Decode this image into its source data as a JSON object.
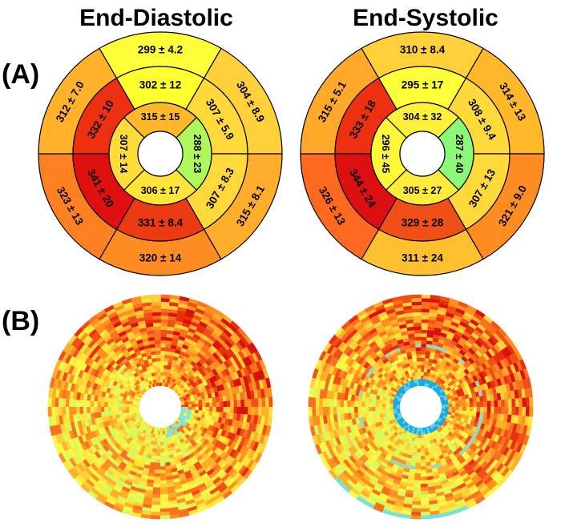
{
  "titles": {
    "end_diastolic": "End-Diastolic",
    "end_systolic": "End-Systolic"
  },
  "panel_labels": {
    "a": "(A)",
    "b": "(B)"
  },
  "color_scale": {
    "low": "#7fff3a",
    "mid": "#ffff30",
    "high": "#d01010"
  },
  "bullseyes": [
    {
      "key": "end_diastolic",
      "segments": [
        {
          "ring": 0,
          "seg": 0,
          "label": "299  ±  4.2",
          "color": "#ffff3a"
        },
        {
          "ring": 0,
          "seg": 1,
          "label": "304  ±  8.9",
          "color": "#ffd03a"
        },
        {
          "ring": 0,
          "seg": 2,
          "label": "315  ±  8.1",
          "color": "#ffad2a"
        },
        {
          "ring": 0,
          "seg": 3,
          "label": "320  ±  14",
          "color": "#ff8c20"
        },
        {
          "ring": 0,
          "seg": 4,
          "label": "323  ±  13",
          "color": "#ff8020"
        },
        {
          "ring": 0,
          "seg": 5,
          "label": "312  ±  7.0",
          "color": "#ffb22a"
        },
        {
          "ring": 1,
          "seg": 0,
          "label": "302 ± 12",
          "color": "#ffff30"
        },
        {
          "ring": 1,
          "seg": 1,
          "label": "307 ± 5.9",
          "color": "#ffd83a"
        },
        {
          "ring": 1,
          "seg": 2,
          "label": "307 ± 8.3",
          "color": "#ffd83a"
        },
        {
          "ring": 1,
          "seg": 3,
          "label": "331 ± 8.4",
          "color": "#ec3a14"
        },
        {
          "ring": 1,
          "seg": 4,
          "label": "341 ± 20",
          "color": "#e01010"
        },
        {
          "ring": 1,
          "seg": 5,
          "label": "332 ± 10",
          "color": "#ec3010"
        },
        {
          "ring": 2,
          "seg": 0,
          "label": "315 ± 15",
          "color": "#ffb82a"
        },
        {
          "ring": 2,
          "seg": 1,
          "label": "288 ± 23",
          "color": "#aef85a"
        },
        {
          "ring": 2,
          "seg": 2,
          "label": "306 ± 17",
          "color": "#ffe43a"
        },
        {
          "ring": 2,
          "seg": 3,
          "label": "307 ± 14",
          "color": "#ffdc3a"
        }
      ]
    },
    {
      "key": "end_systolic",
      "segments": [
        {
          "ring": 0,
          "seg": 0,
          "label": "310  ±  8.4",
          "color": "#ffd03a"
        },
        {
          "ring": 0,
          "seg": 1,
          "label": "314  ±  13",
          "color": "#ffb82a"
        },
        {
          "ring": 0,
          "seg": 2,
          "label": "321  ±  9.0",
          "color": "#ff8c20"
        },
        {
          "ring": 0,
          "seg": 3,
          "label": "311  ±  24",
          "color": "#ffc030"
        },
        {
          "ring": 0,
          "seg": 4,
          "label": "326  ±  13",
          "color": "#ff6a20"
        },
        {
          "ring": 0,
          "seg": 5,
          "label": "315  ±  5.1",
          "color": "#ffa82a"
        },
        {
          "ring": 1,
          "seg": 0,
          "label": "295 ± 17",
          "color": "#ffff3a"
        },
        {
          "ring": 1,
          "seg": 1,
          "label": "308 ± 9.4",
          "color": "#ffd83a"
        },
        {
          "ring": 1,
          "seg": 2,
          "label": "307 ± 13",
          "color": "#ffd83a"
        },
        {
          "ring": 1,
          "seg": 3,
          "label": "329 ± 28",
          "color": "#f05018"
        },
        {
          "ring": 1,
          "seg": 4,
          "label": "344 ± 24",
          "color": "#dc1010"
        },
        {
          "ring": 1,
          "seg": 5,
          "label": "333 ± 18",
          "color": "#ec3010"
        },
        {
          "ring": 2,
          "seg": 0,
          "label": "304 ± 32",
          "color": "#fff03a"
        },
        {
          "ring": 2,
          "seg": 1,
          "label": "287 ± 40",
          "color": "#8cf878"
        },
        {
          "ring": 2,
          "seg": 2,
          "label": "305 ± 27",
          "color": "#ffec3a"
        },
        {
          "ring": 2,
          "seg": 3,
          "label": "296 ± 45",
          "color": "#fff83a"
        }
      ]
    }
  ],
  "heatmaps": [
    {
      "key": "end_diastolic",
      "tint_ring": "cyan patch near inner hole"
    },
    {
      "key": "end_systolic",
      "tint_ring": "blue inner ring"
    }
  ]
}
